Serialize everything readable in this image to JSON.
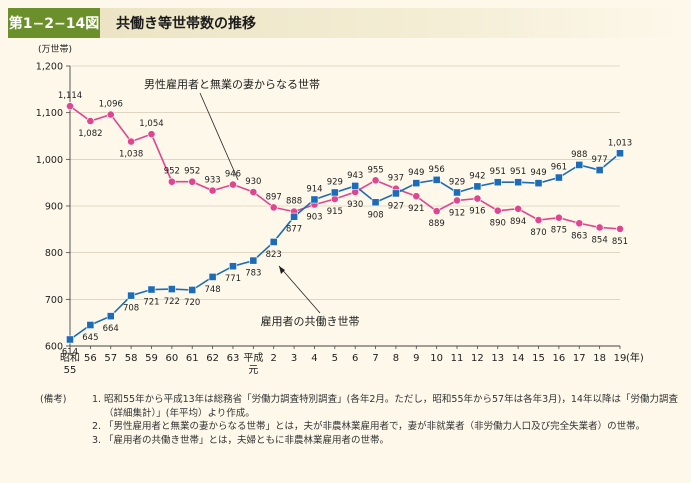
{
  "figure": {
    "label": "第1−2−14図",
    "title": "共働き等世帯数の推移"
  },
  "chart_data": {
    "type": "line",
    "unit_label": "(万世帯)",
    "xlabel_unit": "(年)",
    "ylim": [
      600,
      1200
    ],
    "yticks": [
      "600",
      "700",
      "800",
      "900",
      "1,000",
      "1,100",
      "1,200"
    ],
    "categories": [
      [
        "昭和",
        "55"
      ],
      [
        "56"
      ],
      [
        "57"
      ],
      [
        "58"
      ],
      [
        "59"
      ],
      [
        "60"
      ],
      [
        "61"
      ],
      [
        "62"
      ],
      [
        "63"
      ],
      [
        "平成",
        "元"
      ],
      [
        "2"
      ],
      [
        "3"
      ],
      [
        "4"
      ],
      [
        "5"
      ],
      [
        "6"
      ],
      [
        "7"
      ],
      [
        "8"
      ],
      [
        "9"
      ],
      [
        "10"
      ],
      [
        "11"
      ],
      [
        "12"
      ],
      [
        "13"
      ],
      [
        "14"
      ],
      [
        "15"
      ],
      [
        "16"
      ],
      [
        "17"
      ],
      [
        "18"
      ],
      [
        "19"
      ]
    ],
    "series": [
      {
        "name": "男性雇用者と無業の妻からなる世帯",
        "color": "#e0468e",
        "marker": "circle",
        "values": [
          1114,
          1082,
          1096,
          1038,
          1054,
          952,
          952,
          933,
          946,
          930,
          897,
          888,
          903,
          915,
          930,
          955,
          937,
          921,
          889,
          912,
          916,
          890,
          894,
          870,
          875,
          863,
          854,
          851
        ],
        "labels": [
          "1,114",
          "1,082",
          "1,096",
          "1,038",
          "1,054",
          "952",
          "952",
          "933",
          "946",
          "930",
          "897",
          "888",
          "903",
          "915",
          "930",
          "955",
          "937",
          "921",
          "889",
          "912",
          "916",
          "890",
          "894",
          "870",
          "875",
          "863",
          "854",
          "851"
        ]
      },
      {
        "name": "雇用者の共働き世帯",
        "color": "#1e6bb8",
        "marker": "square",
        "values": [
          614,
          645,
          664,
          708,
          721,
          722,
          720,
          748,
          771,
          783,
          823,
          877,
          914,
          929,
          943,
          908,
          927,
          949,
          956,
          929,
          942,
          951,
          951,
          949,
          961,
          988,
          977,
          1013
        ],
        "labels": [
          "614",
          "645",
          "664",
          "708",
          "721",
          "722",
          "720",
          "748",
          "771",
          "783",
          "823",
          "877",
          "914",
          "929",
          "943",
          "908",
          "927",
          "949",
          "956",
          "929",
          "942",
          "951",
          "951",
          "949",
          "961",
          "988",
          "977",
          "1,013"
        ]
      }
    ],
    "grid": true
  },
  "notes": {
    "head": "(備考)",
    "items": [
      {
        "num": "1.",
        "text": "昭和55年から平成13年は総務省「労働力調査特別調査」(各年2月。ただし，昭和55年から57年は各年3月)，14年以降は「労働力調査（詳細集計）」(年平均）より作成。"
      },
      {
        "num": "2.",
        "text": "「男性雇用者と無業の妻からなる世帯」とは，夫が非農林業雇用者で，妻が非就業者（非労働力人口及び完全失業者）の世帯。"
      },
      {
        "num": "3.",
        "text": "「雇用者の共働き世帯」とは，夫婦ともに非農林業雇用者の世帯。"
      }
    ]
  }
}
